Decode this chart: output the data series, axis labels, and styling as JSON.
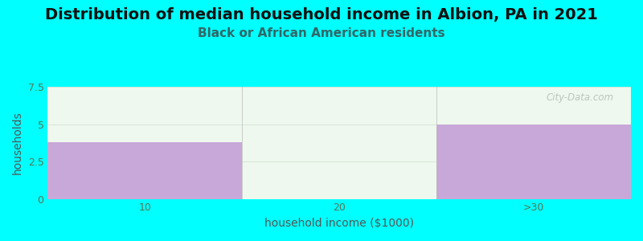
{
  "title": "Distribution of median household income in Albion, PA in 2021",
  "subtitle": "Black or African American residents",
  "xlabel": "household income ($1000)",
  "ylabel": "households",
  "categories": [
    "10",
    "20",
    ">30"
  ],
  "values": [
    3.8,
    0,
    5.0
  ],
  "bar_color": "#c8a8d8",
  "background_color": "#00FFFF",
  "plot_bg_color": "#eef8ee",
  "ylim": [
    0,
    7.5
  ],
  "yticks": [
    0,
    2.5,
    5.0,
    7.5
  ],
  "title_fontsize": 14,
  "subtitle_fontsize": 11,
  "axis_label_fontsize": 10,
  "tick_fontsize": 9,
  "title_color": "#111111",
  "subtitle_color": "#336666",
  "axis_label_color": "#555555",
  "tick_color": "#557755",
  "watermark": "City-Data.com"
}
